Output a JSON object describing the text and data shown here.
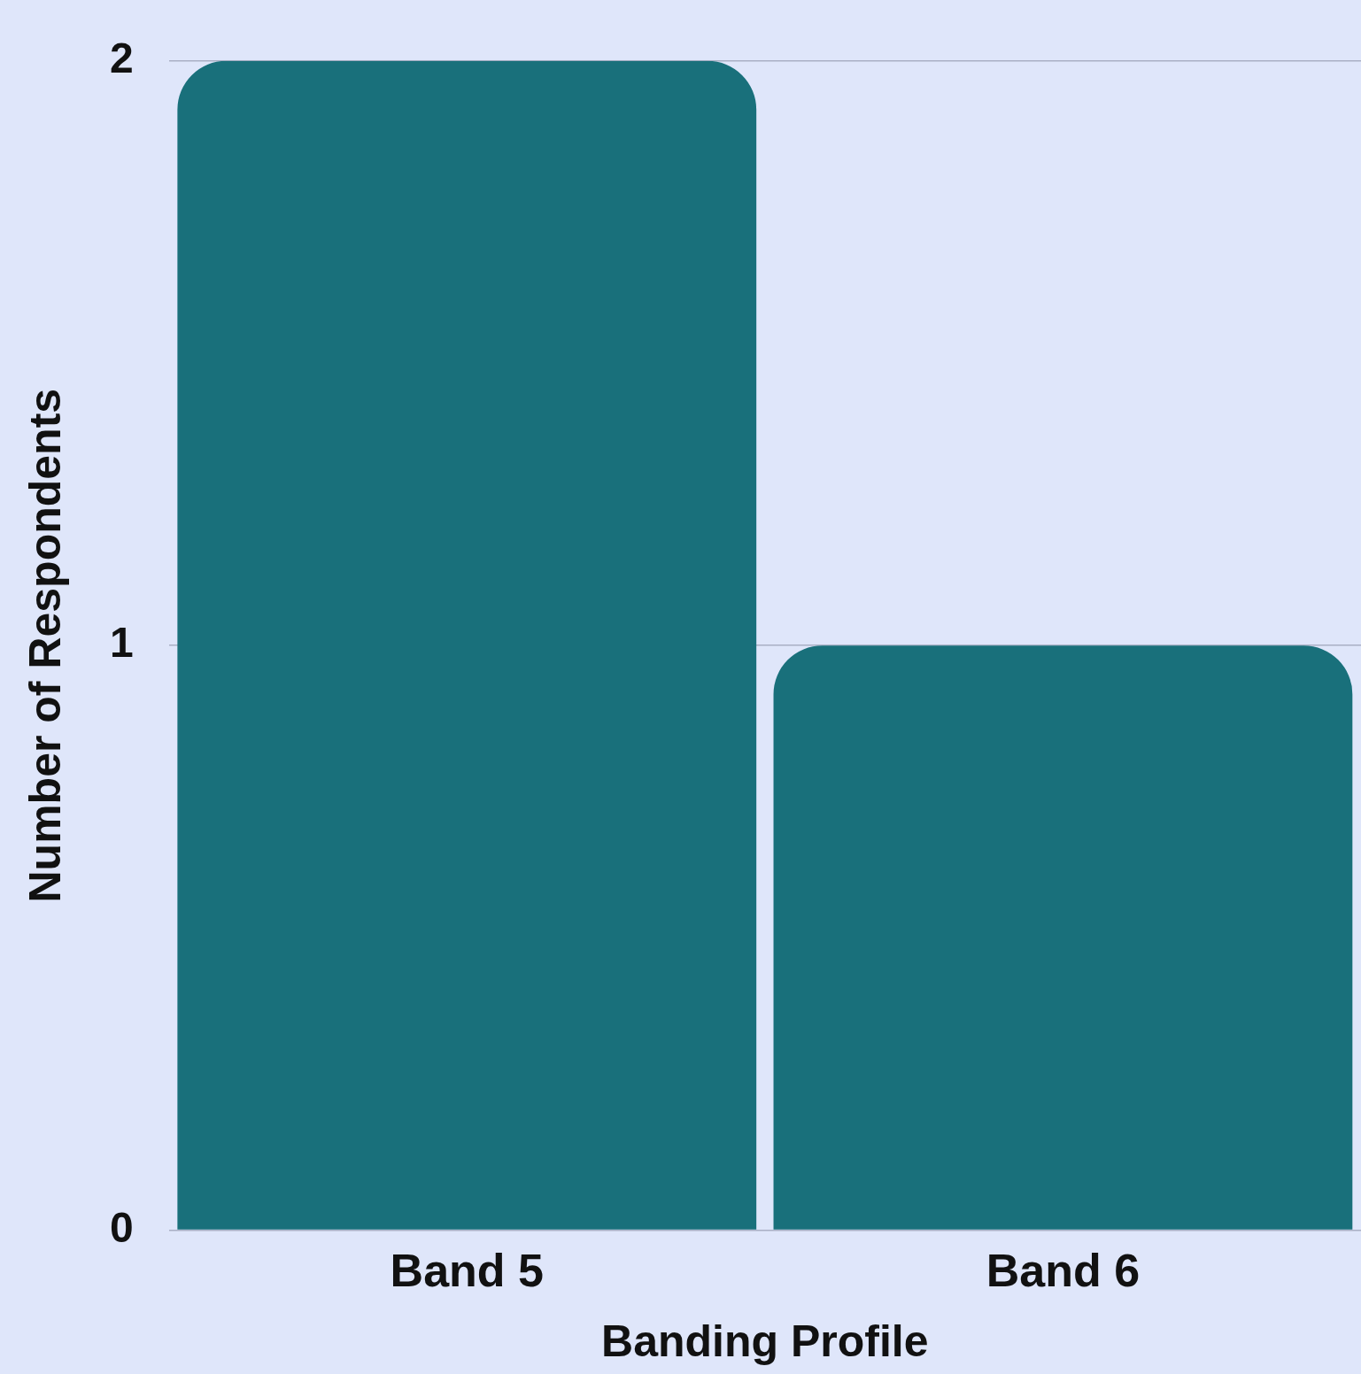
{
  "chart_data": {
    "type": "bar",
    "xlabel": "Banding Profile",
    "ylabel": "Number of Respondents",
    "categories": [
      "Band 5",
      "Band 6"
    ],
    "values": [
      2,
      1
    ],
    "color": "#19707b",
    "ylim": [
      0,
      2
    ],
    "yticks": [
      0,
      1,
      2
    ],
    "grid": "y",
    "legend": false
  }
}
